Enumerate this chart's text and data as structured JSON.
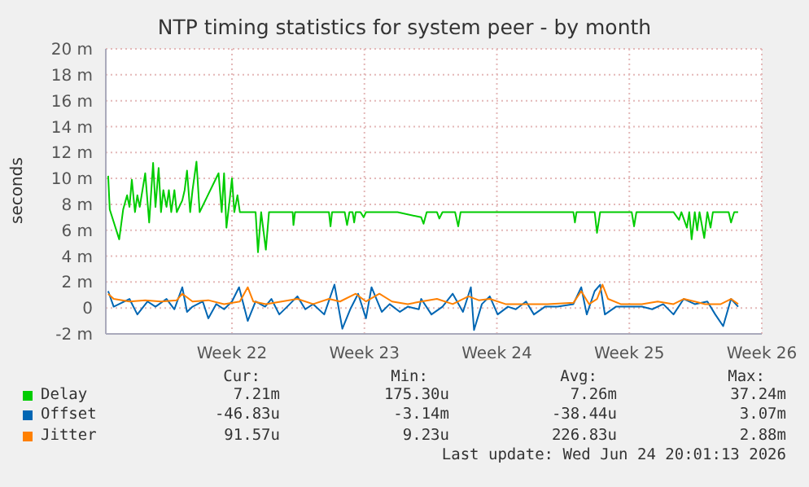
{
  "chart_data": {
    "type": "line",
    "title": "NTP timing statistics for system peer - by month",
    "ylabel": "seconds",
    "xlim": [
      "2026-05-18T08:00",
      "2026-06-22T00:00"
    ],
    "xticks": [
      {
        "value": "2026-05-25",
        "label": "Week 22"
      },
      {
        "value": "2026-06-01",
        "label": "Week 23"
      },
      {
        "value": "2026-06-08",
        "label": "Week 24"
      },
      {
        "value": "2026-06-15",
        "label": "Week 25"
      },
      {
        "value": "2026-06-22",
        "label": "Week 26"
      }
    ],
    "ylim": [
      -2,
      20
    ],
    "yticks": [
      {
        "value": -2,
        "label": "-2 m"
      },
      0,
      {
        "value": 2,
        "label": "2 m"
      },
      {
        "value": 4,
        "label": "4 m"
      },
      {
        "value": 6,
        "label": "6 m"
      },
      {
        "value": 8,
        "label": "8 m"
      },
      {
        "value": 10,
        "label": "10 m"
      },
      {
        "value": 12,
        "label": "12 m"
      },
      {
        "value": 14,
        "label": "14 m"
      },
      {
        "value": 16,
        "label": "16 m"
      },
      {
        "value": 18,
        "label": "18 m"
      },
      {
        "value": 20,
        "label": "20 m"
      }
    ],
    "grid": true,
    "legend": "bottom",
    "series": [
      {
        "name": "Delay",
        "color": "#00cc00",
        "x": [
          "2026-05-18T11:00",
          "2026-05-18T13:00",
          "2026-05-19T01:00",
          "2026-05-19T06:00",
          "2026-05-19T11:00",
          "2026-05-19T14:00",
          "2026-05-19T17:00",
          "2026-05-19T21:00",
          "2026-05-20T00:00",
          "2026-05-20T03:00",
          "2026-05-20T10:00",
          "2026-05-20T15:00",
          "2026-05-20T20:00",
          "2026-05-20T23:00",
          "2026-05-21T03:00",
          "2026-05-21T06:00",
          "2026-05-21T09:00",
          "2026-05-21T13:00",
          "2026-05-21T16:00",
          "2026-05-21T19:00",
          "2026-05-21T23:00",
          "2026-05-22T02:00",
          "2026-05-22T09:00",
          "2026-05-22T12:00",
          "2026-05-22T15:00",
          "2026-05-22T19:00",
          "2026-05-22T22:00",
          "2026-05-23T03:00",
          "2026-05-23T07:00",
          "2026-05-24T07:00",
          "2026-05-24T11:00",
          "2026-05-24T14:00",
          "2026-05-24T17:00",
          "2026-05-24T21:00",
          "2026-05-25T00:00",
          "2026-05-25T03:00",
          "2026-05-25T07:00",
          "2026-05-25T10:00",
          "2026-05-25T17:00",
          "2026-05-26T06:00",
          "2026-05-26T09:00",
          "2026-05-26T13:00",
          "2026-05-26T19:00",
          "2026-05-26T23:00",
          "2026-05-28T05:00",
          "2026-05-28T06:00",
          "2026-05-28T08:00",
          "2026-05-30T03:00",
          "2026-05-30T05:00",
          "2026-05-30T07:00",
          "2026-05-30T23:00",
          "2026-05-31T02:00",
          "2026-05-31T05:00",
          "2026-05-31T09:00",
          "2026-05-31T11:00",
          "2026-05-31T13:00",
          "2026-05-31T19:00",
          "2026-05-31T23:00",
          "2026-06-01T02:00",
          "2026-06-02T18:00",
          "2026-06-04T00:00",
          "2026-06-04T03:00",
          "2026-06-04T07:00",
          "2026-06-04T20:00",
          "2026-06-04T23:00",
          "2026-06-05T03:00",
          "2026-06-05T19:00",
          "2026-06-05T23:00",
          "2026-06-06T02:00",
          "2026-06-12T01:00",
          "2026-06-12T03:00",
          "2026-06-12T05:00",
          "2026-06-13T04:00",
          "2026-06-13T07:00",
          "2026-06-13T11:00",
          "2026-06-15T03:00",
          "2026-06-15T06:00",
          "2026-06-15T09:00",
          "2026-06-17T08:00",
          "2026-06-17T15:00",
          "2026-06-17T18:00",
          "2026-06-18T01:00",
          "2026-06-18T04:00",
          "2026-06-18T07:00",
          "2026-06-18T11:00",
          "2026-06-18T14:00",
          "2026-06-18T17:00",
          "2026-06-18T23:00",
          "2026-06-19T03:00",
          "2026-06-19T07:00",
          "2026-06-19T10:00",
          "2026-06-20T06:00",
          "2026-06-20T09:00",
          "2026-06-20T13:00",
          "2026-06-20T18:00"
        ],
        "values": [
          10.2,
          7.6,
          5.3,
          7.6,
          8.7,
          7.8,
          9.9,
          7.4,
          8.7,
          7.8,
          10.4,
          6.6,
          11.2,
          7.8,
          10.8,
          7.4,
          9.1,
          7.8,
          9.1,
          7.4,
          9.1,
          7.4,
          8.3,
          9.1,
          10.6,
          7.4,
          9.1,
          11.3,
          7.4,
          10.4,
          7.4,
          10.4,
          6.2,
          8.3,
          10.0,
          7.4,
          8.7,
          7.4,
          7.4,
          7.4,
          4.3,
          7.4,
          4.5,
          7.4,
          7.4,
          6.4,
          7.4,
          7.4,
          6.3,
          7.4,
          7.4,
          6.4,
          7.4,
          7.4,
          6.6,
          7.4,
          7.4,
          7.0,
          7.4,
          7.4,
          7.0,
          6.5,
          7.4,
          7.4,
          6.9,
          7.4,
          7.4,
          6.3,
          7.4,
          7.4,
          6.6,
          7.4,
          7.4,
          5.8,
          7.4,
          7.4,
          6.3,
          7.4,
          7.4,
          6.8,
          7.4,
          6.2,
          7.4,
          5.3,
          7.4,
          6.0,
          7.4,
          5.4,
          7.4,
          6.2,
          7.4,
          7.4,
          6.6,
          7.4,
          7.4
        ]
      },
      {
        "name": "Offset",
        "color": "#0066b3",
        "x": [
          "2026-05-18T11:00",
          "2026-05-18T18:00",
          "2026-05-19T14:00",
          "2026-05-20T00:00",
          "2026-05-20T13:00",
          "2026-05-20T23:00",
          "2026-05-21T13:00",
          "2026-05-21T23:00",
          "2026-05-22T09:00",
          "2026-05-22T15:00",
          "2026-05-22T22:00",
          "2026-05-23T11:00",
          "2026-05-23T18:00",
          "2026-05-24T04:00",
          "2026-05-24T14:00",
          "2026-05-25T00:00",
          "2026-05-25T09:00",
          "2026-05-25T20:00",
          "2026-05-26T06:00",
          "2026-05-26T18:00",
          "2026-05-27T02:00",
          "2026-05-27T12:00",
          "2026-05-27T22:00",
          "2026-05-28T11:00",
          "2026-05-28T21:00",
          "2026-05-29T07:00",
          "2026-05-29T21:00",
          "2026-05-30T10:00",
          "2026-05-30T20:00",
          "2026-05-31T06:00",
          "2026-05-31T16:00",
          "2026-06-01T02:00",
          "2026-06-01T09:00",
          "2026-06-01T22:00",
          "2026-06-02T08:00",
          "2026-06-02T21:00",
          "2026-06-03T07:00",
          "2026-06-03T21:00",
          "2026-06-04T00:00",
          "2026-06-04T13:00",
          "2026-06-05T03:00",
          "2026-06-05T16:00",
          "2026-06-06T05:00",
          "2026-06-06T15:00",
          "2026-06-06T19:00",
          "2026-06-07T05:00",
          "2026-06-07T15:00",
          "2026-06-08T01:00",
          "2026-06-08T14:00",
          "2026-06-09T00:00",
          "2026-06-09T13:00",
          "2026-06-09T23:00",
          "2026-06-10T13:00",
          "2026-06-11T05:00",
          "2026-06-12T01:00",
          "2026-06-12T11:00",
          "2026-06-12T18:00",
          "2026-06-13T04:00",
          "2026-06-13T11:00",
          "2026-06-13T17:00",
          "2026-06-14T07:00",
          "2026-06-15T03:00",
          "2026-06-15T16:00",
          "2026-06-16T05:00",
          "2026-06-16T19:00",
          "2026-06-17T08:00",
          "2026-06-17T21:00",
          "2026-06-18T11:00",
          "2026-06-19T03:00",
          "2026-06-19T13:00",
          "2026-06-19T23:00",
          "2026-06-20T09:00",
          "2026-06-20T18:00"
        ],
        "values": [
          1.3,
          0.1,
          0.7,
          -0.5,
          0.5,
          0.1,
          0.7,
          -0.1,
          1.6,
          -0.3,
          0.1,
          0.5,
          -0.8,
          0.3,
          -0.1,
          0.5,
          1.6,
          -1.0,
          0.5,
          0.1,
          0.7,
          -0.5,
          0.1,
          0.9,
          -0.1,
          0.3,
          -0.5,
          1.8,
          -1.6,
          -0.1,
          1.1,
          -0.8,
          1.6,
          -0.3,
          0.3,
          -0.3,
          0.1,
          -0.1,
          0.7,
          -0.5,
          0.1,
          1.1,
          -0.3,
          1.6,
          -1.7,
          0.3,
          0.9,
          -0.5,
          0.1,
          -0.1,
          0.5,
          -0.5,
          0.1,
          0.1,
          0.3,
          1.6,
          -0.5,
          1.3,
          1.8,
          -0.5,
          0.1,
          0.1,
          0.1,
          -0.1,
          0.3,
          -0.5,
          0.7,
          0.3,
          0.5,
          -0.5,
          -1.4,
          0.7,
          0.1
        ]
      },
      {
        "name": "Jitter",
        "color": "#ff8000",
        "x": [
          "2026-05-18T11:00",
          "2026-05-18T18:00",
          "2026-05-19T14:00",
          "2026-05-20T10:00",
          "2026-05-21T06:00",
          "2026-05-22T02:00",
          "2026-05-22T09:00",
          "2026-05-22T22:00",
          "2026-05-23T18:00",
          "2026-05-24T14:00",
          "2026-05-25T10:00",
          "2026-05-25T20:00",
          "2026-05-26T03:00",
          "2026-05-26T19:00",
          "2026-05-27T15:00",
          "2026-05-28T11:00",
          "2026-05-29T07:00",
          "2026-05-30T03:00",
          "2026-05-30T17:00",
          "2026-05-31T13:00",
          "2026-06-01T02:00",
          "2026-06-01T19:00",
          "2026-06-02T11:00",
          "2026-06-03T07:00",
          "2026-06-04T00:00",
          "2026-06-04T20:00",
          "2026-06-05T16:00",
          "2026-06-06T12:00",
          "2026-06-07T01:00",
          "2026-06-07T15:00",
          "2026-06-08T11:00",
          "2026-06-09T13:00",
          "2026-06-10T16:00",
          "2026-06-12T01:00",
          "2026-06-12T11:00",
          "2026-06-12T21:00",
          "2026-06-13T07:00",
          "2026-06-13T14:00",
          "2026-06-13T21:00",
          "2026-06-14T13:00",
          "2026-06-15T16:00",
          "2026-06-16T12:00",
          "2026-06-17T08:00",
          "2026-06-17T21:00",
          "2026-06-18T11:00",
          "2026-06-19T00:00",
          "2026-06-19T20:00",
          "2026-06-20T09:00",
          "2026-06-20T18:00"
        ],
        "values": [
          1.1,
          0.7,
          0.5,
          0.6,
          0.5,
          0.6,
          1.1,
          0.5,
          0.6,
          0.3,
          0.5,
          1.6,
          0.5,
          0.3,
          0.5,
          0.7,
          0.3,
          0.7,
          0.5,
          1.1,
          0.5,
          1.1,
          0.5,
          0.3,
          0.5,
          0.7,
          0.3,
          0.9,
          0.6,
          0.7,
          0.3,
          0.3,
          0.3,
          0.4,
          1.3,
          0.3,
          0.7,
          1.8,
          0.7,
          0.3,
          0.3,
          0.5,
          0.3,
          0.7,
          0.5,
          0.3,
          0.3,
          0.7,
          0.3
        ]
      }
    ],
    "annotations": [
      "Cur:",
      "Min:",
      "Avg:",
      "Max:",
      "7.21m",
      "175.30u",
      "7.26m",
      "37.24m",
      "-46.83u",
      "-3.14m",
      "-38.44u",
      "3.07m",
      "91.57u",
      "9.23u",
      "226.83u",
      "2.88m",
      "Last update: Wed Jun 24 20:01:13 2026"
    ]
  }
}
